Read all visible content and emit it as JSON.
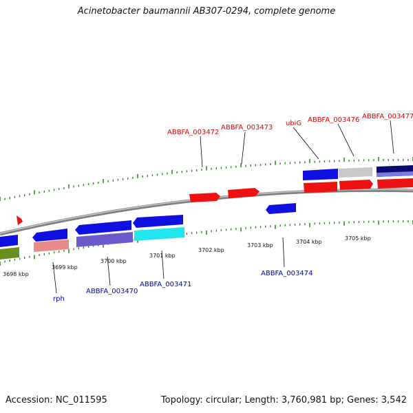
{
  "title": "Acinetobacter baumannii AB307-0294, complete genome",
  "footer": {
    "accession": "Accession: NC_011595",
    "summary": "Topology: circular; Length: 3,760,981 bp; Genes: 3,542"
  },
  "colors": {
    "forward_label": "#e00000",
    "reverse_label": "#0000c0",
    "tick": "#2e8b22",
    "backbone": "#909090"
  },
  "ticks": [
    {
      "label": "3698 kbp"
    },
    {
      "label": "3699 kbp"
    },
    {
      "label": "3700 kbp"
    },
    {
      "label": "3701 kbp"
    },
    {
      "label": "3702 kbp"
    },
    {
      "label": "3703 kbp"
    },
    {
      "label": "3704 kbp"
    },
    {
      "label": "3705 kbp"
    }
  ],
  "forward_labels": [
    {
      "text": "ABBFA_003472"
    },
    {
      "text": "ABBFA_003473"
    },
    {
      "text": "ubiG"
    },
    {
      "text": "ABBFA_003476"
    },
    {
      "text": "ABBFA_003477"
    }
  ],
  "reverse_labels": [
    {
      "text": "rph"
    },
    {
      "text": "ABBFA_003470"
    },
    {
      "text": "ABBFA_003471"
    },
    {
      "text": "ABBFA_003474"
    }
  ]
}
